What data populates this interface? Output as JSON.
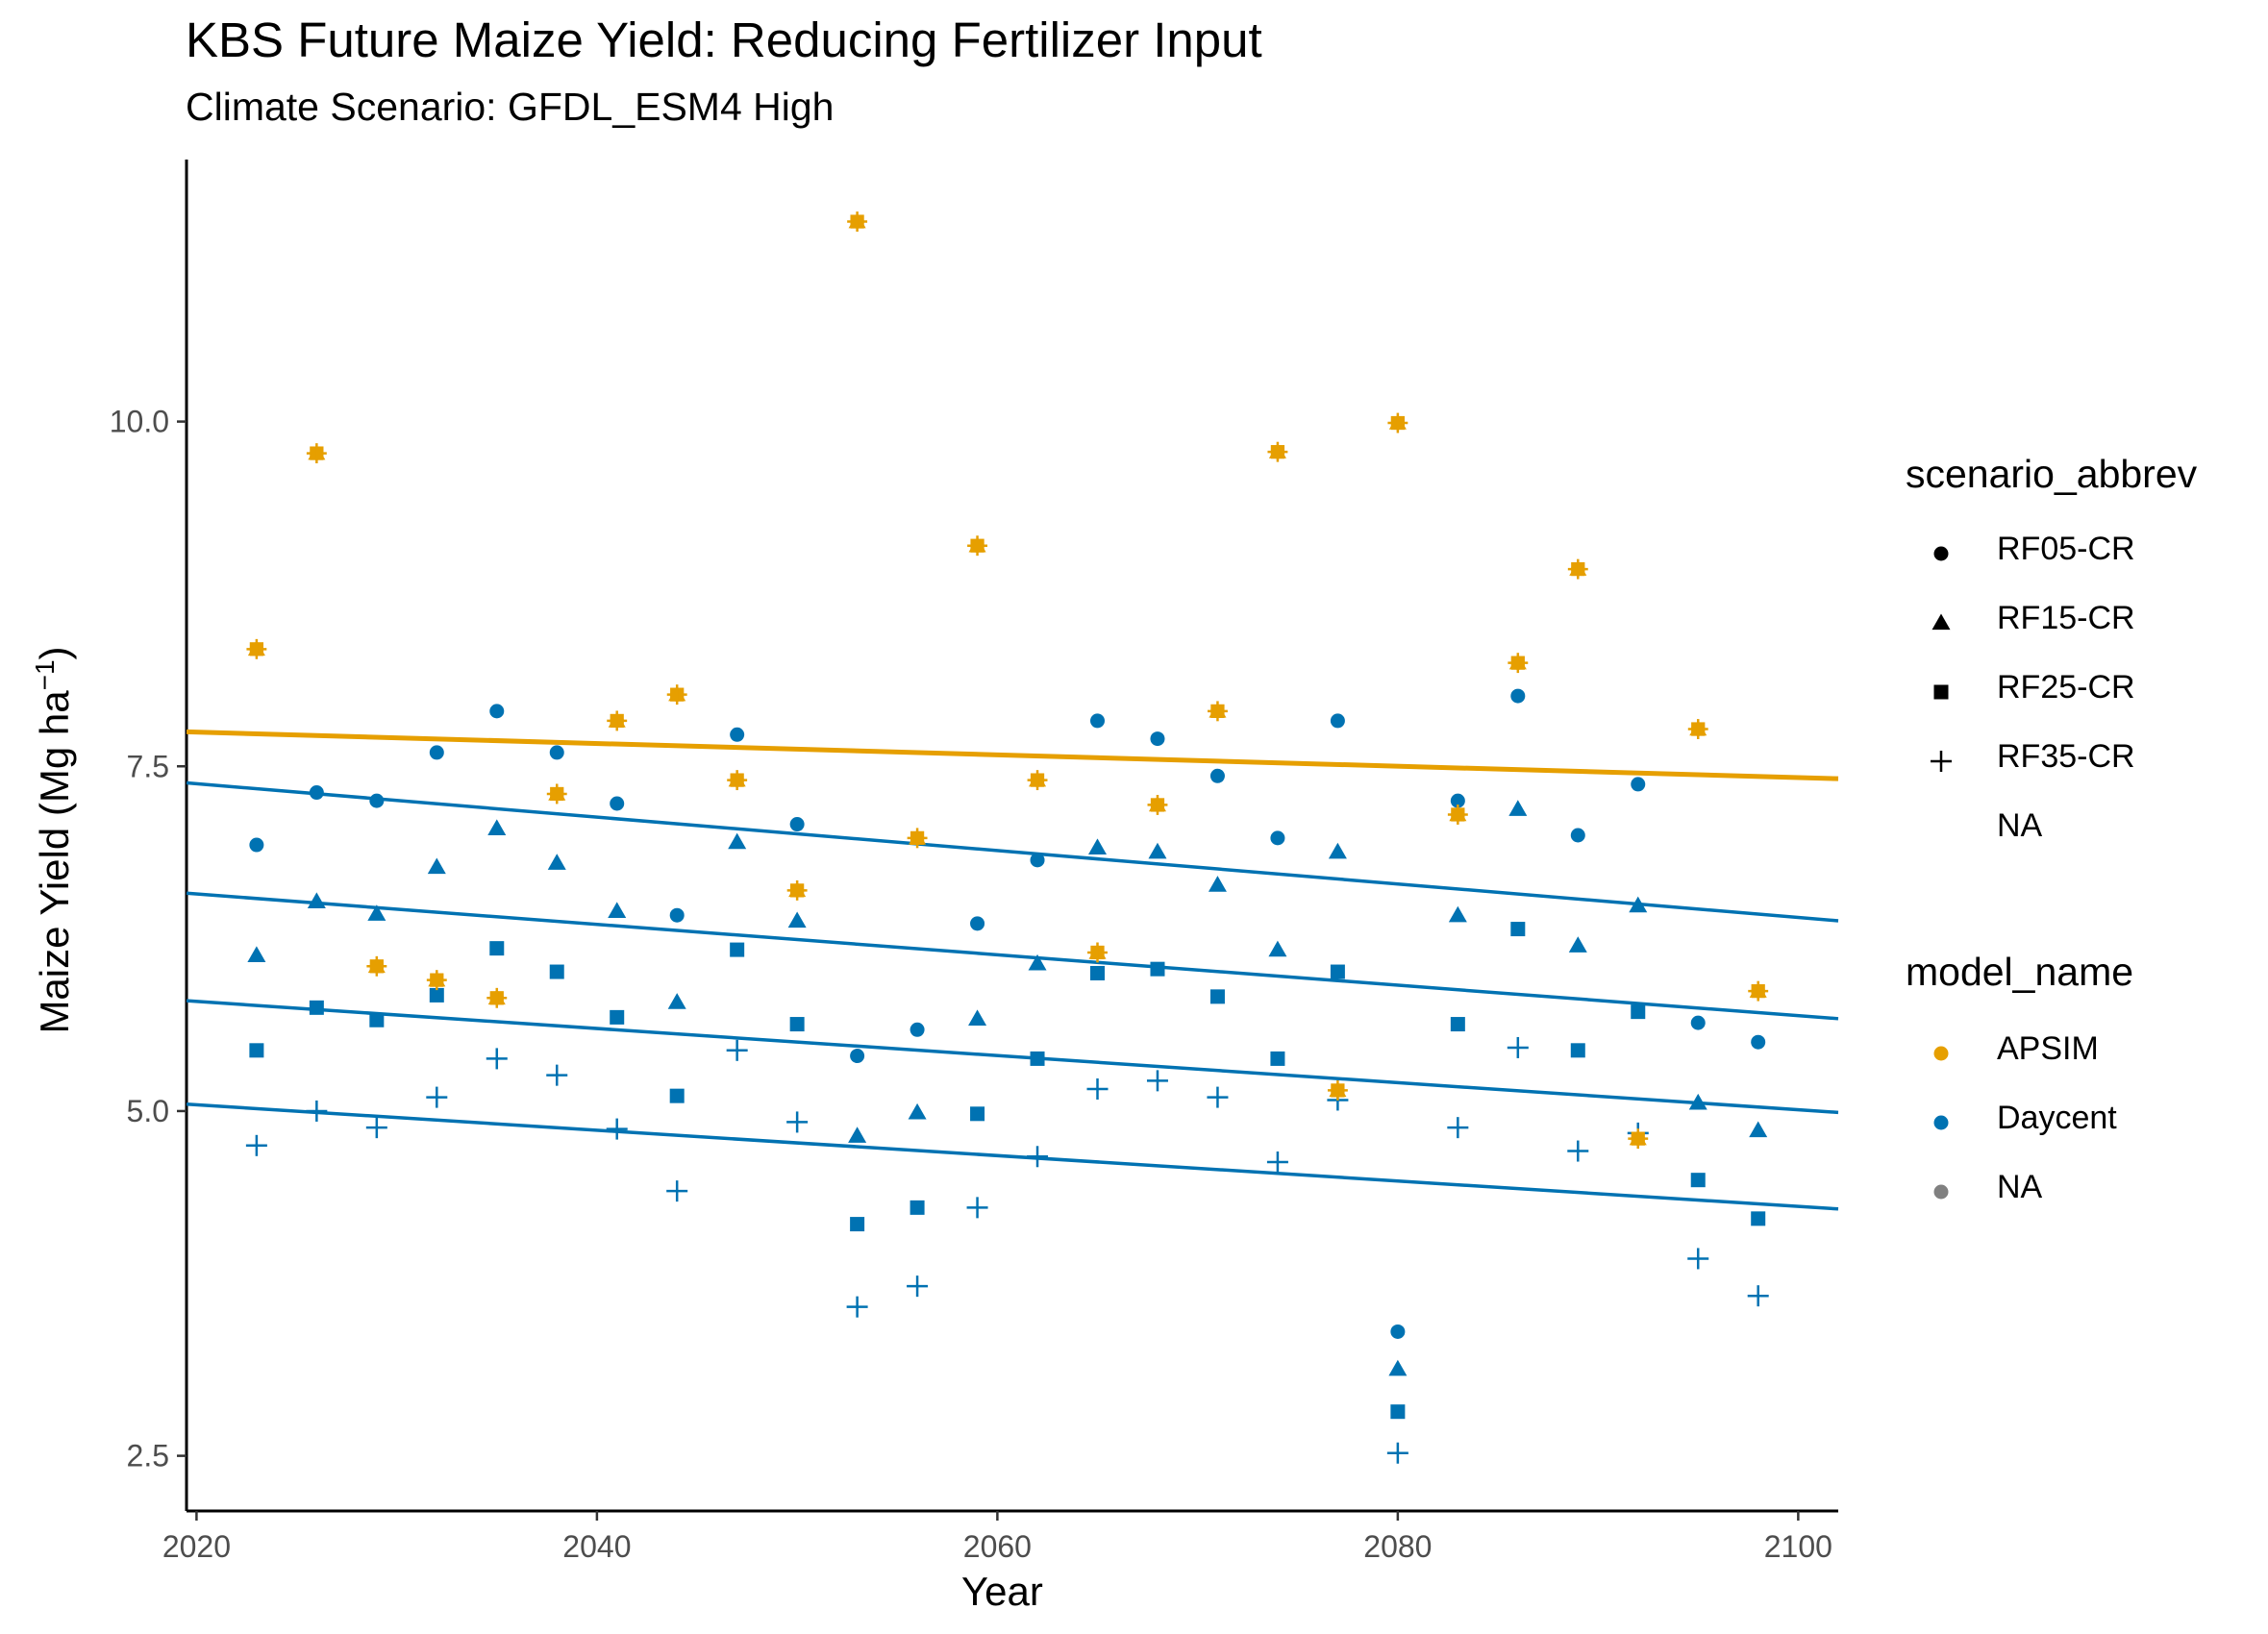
{
  "chart_data": {
    "type": "scatter",
    "title": "KBS Future Maize Yield: Reducing Fertilizer Input",
    "subtitle": "Climate Scenario: GFDL_ESM4 High",
    "xlabel": "Year",
    "ylabel": "Maize Yield (Mg ha",
    "ylabel_sup": "−1",
    "ylabel_close": ")",
    "xlim": [
      2019.5,
      2102
    ],
    "ylim": [
      2.1,
      11.9
    ],
    "x_ticks": [
      "2020",
      "2040",
      "2060",
      "2080",
      "2100"
    ],
    "y_ticks": [
      "2.5",
      "5.0",
      "7.5",
      "10.0"
    ],
    "grid": false,
    "legend_placement": "right",
    "colors": {
      "APSIM": "#E69F00",
      "Daycent": "#0072B2",
      "NA": "#808080"
    },
    "legends": [
      {
        "title": "scenario_abbrev",
        "items": [
          {
            "label": "RF05-CR",
            "shape": "circle"
          },
          {
            "label": "RF15-CR",
            "shape": "triangle"
          },
          {
            "label": "RF25-CR",
            "shape": "square"
          },
          {
            "label": "RF35-CR",
            "shape": "plus"
          },
          {
            "label": "NA",
            "shape": "none"
          }
        ]
      },
      {
        "title": "model_name",
        "items": [
          {
            "label": "APSIM",
            "color": "#E69F00"
          },
          {
            "label": "Daycent",
            "color": "#0072B2"
          },
          {
            "label": "NA",
            "color": "#808080"
          }
        ]
      }
    ],
    "years": [
      2023,
      2026,
      2029,
      2032,
      2035,
      2038,
      2041,
      2044,
      2047,
      2050,
      2053,
      2056,
      2059,
      2062,
      2065,
      2068,
      2071,
      2074,
      2077,
      2080,
      2083,
      2086,
      2089,
      2092,
      2095,
      2098
    ],
    "series": [
      {
        "name": "APSIM",
        "model": "APSIM",
        "scenario": "all",
        "marker": "all",
        "values": [
          8.35,
          9.77,
          6.05,
          5.95,
          5.82,
          7.3,
          7.83,
          8.02,
          7.4,
          6.6,
          11.45,
          6.98,
          9.1,
          7.4,
          6.15,
          7.22,
          7.9,
          9.78,
          5.15,
          9.99,
          7.15,
          8.25,
          8.93,
          4.8,
          7.77,
          5.87
        ]
      },
      {
        "name": "RF05-CR",
        "model": "Daycent",
        "scenario": "RF05-CR",
        "marker": "circle",
        "values": [
          6.93,
          7.31,
          7.25,
          7.6,
          7.9,
          7.6,
          7.23,
          6.42,
          7.73,
          7.08,
          5.4,
          5.59,
          6.36,
          6.82,
          7.83,
          7.7,
          7.43,
          6.98,
          7.83,
          3.4,
          7.25,
          8.01,
          7.0,
          7.37,
          5.64,
          5.5
        ]
      },
      {
        "name": "RF15-CR",
        "model": "Daycent",
        "scenario": "RF15-CR",
        "marker": "triangle",
        "values": [
          6.13,
          6.52,
          6.43,
          6.77,
          7.05,
          6.8,
          6.45,
          5.79,
          6.95,
          6.38,
          4.82,
          4.99,
          5.67,
          6.07,
          6.91,
          6.88,
          6.64,
          6.17,
          6.88,
          3.13,
          6.42,
          7.19,
          6.2,
          6.49,
          5.06,
          4.86
        ]
      },
      {
        "name": "RF25-CR",
        "model": "Daycent",
        "scenario": "RF25-CR",
        "marker": "square",
        "values": [
          5.44,
          5.75,
          5.66,
          5.84,
          6.18,
          6.01,
          5.68,
          5.11,
          6.17,
          5.63,
          4.18,
          4.3,
          4.98,
          5.38,
          6.0,
          6.03,
          5.83,
          5.38,
          6.01,
          2.82,
          5.63,
          6.32,
          5.44,
          5.72,
          4.5,
          4.22
        ]
      },
      {
        "name": "RF35-CR",
        "model": "Daycent",
        "scenario": "RF35-CR",
        "marker": "plus",
        "values": [
          4.75,
          5.0,
          4.88,
          5.1,
          5.38,
          5.26,
          4.87,
          4.42,
          5.44,
          4.92,
          3.58,
          3.73,
          4.3,
          4.67,
          5.16,
          5.22,
          5.1,
          4.63,
          5.08,
          2.52,
          4.88,
          5.46,
          4.71,
          4.84,
          3.93,
          3.66
        ]
      }
    ],
    "trend_lines": [
      {
        "name": "APSIM",
        "model": "APSIM",
        "x": [
          2019.5,
          2102
        ],
        "y": [
          7.75,
          7.41
        ]
      },
      {
        "name": "RF05-CR",
        "model": "Daycent",
        "x": [
          2019.5,
          2102
        ],
        "y": [
          7.38,
          6.38
        ]
      },
      {
        "name": "RF15-CR",
        "model": "Daycent",
        "x": [
          2019.5,
          2102
        ],
        "y": [
          6.58,
          5.67
        ]
      },
      {
        "name": "RF25-CR",
        "model": "Daycent",
        "x": [
          2019.5,
          2102
        ],
        "y": [
          5.8,
          4.99
        ]
      },
      {
        "name": "RF35-CR",
        "model": "Daycent",
        "x": [
          2019.5,
          2102
        ],
        "y": [
          5.05,
          4.29
        ]
      }
    ]
  }
}
